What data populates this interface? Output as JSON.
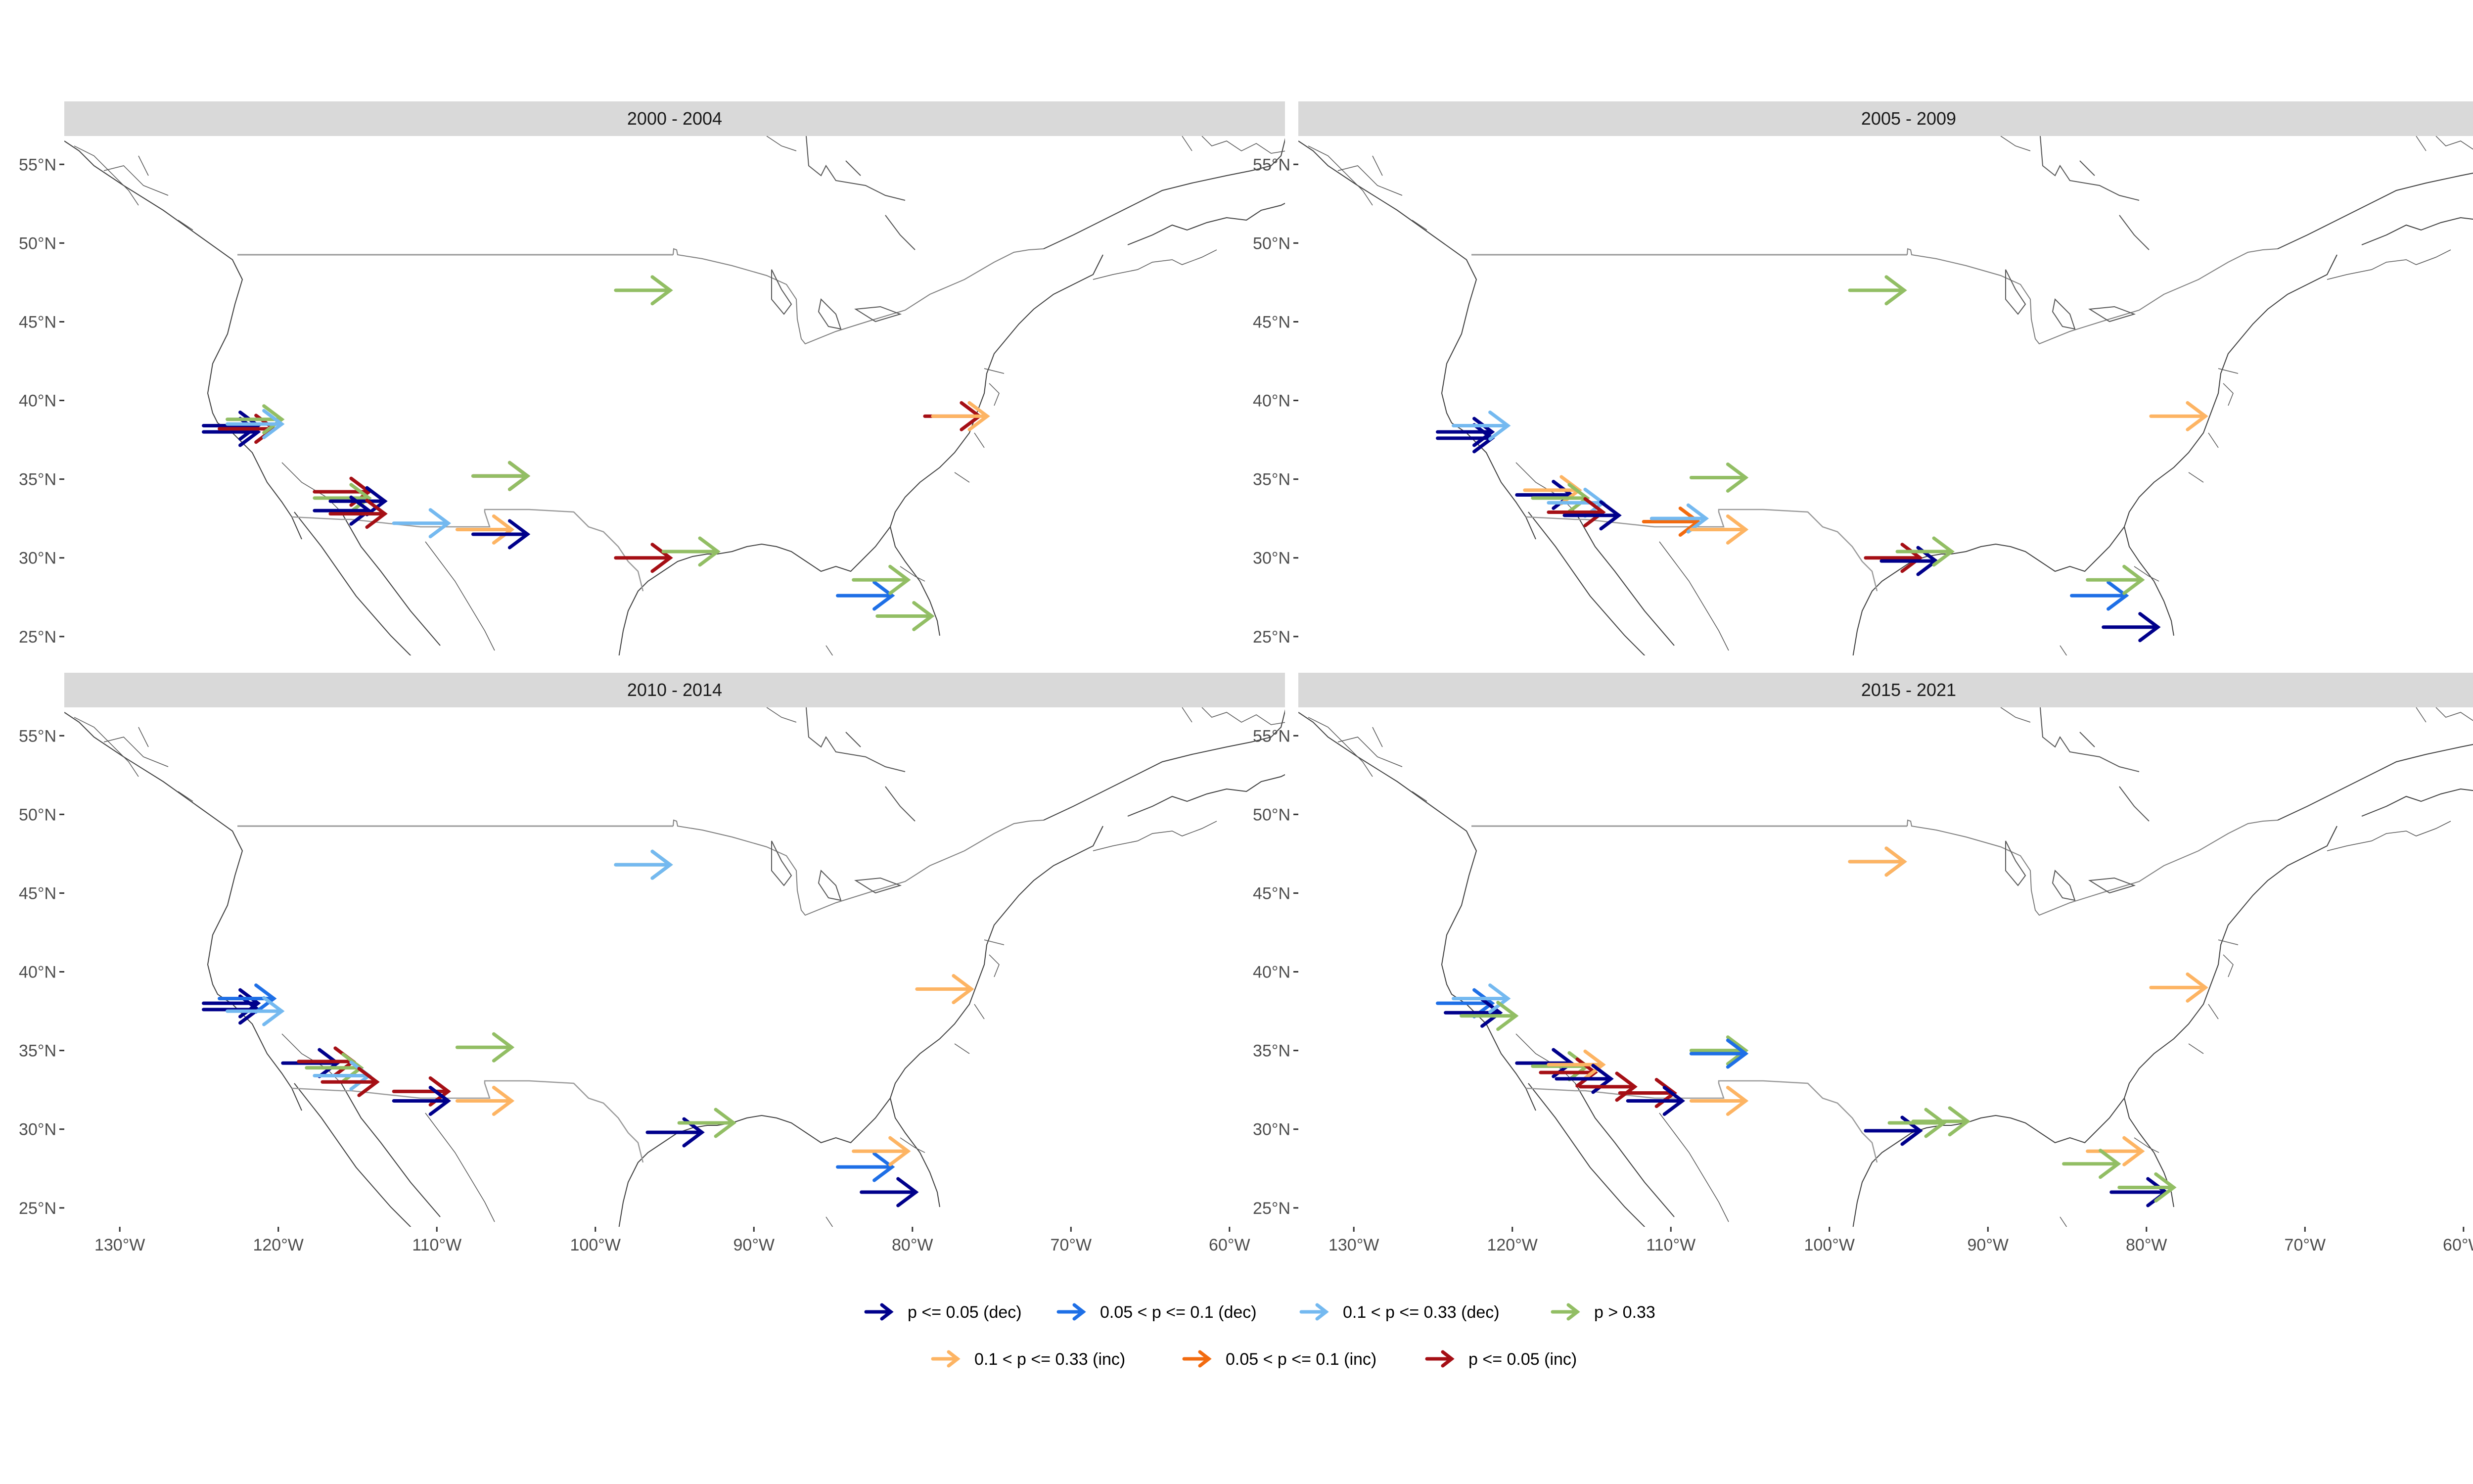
{
  "chart_data": {
    "type": "map",
    "panels": [
      {
        "title": "2000 - 2004",
        "arrows": [
          {
            "lon": -97,
            "lat": 47,
            "cat": "ns"
          },
          {
            "lon": -123,
            "lat": 38,
            "cat": "dec05"
          },
          {
            "lon": -123,
            "lat": 38.4,
            "cat": "dec05"
          },
          {
            "lon": -122,
            "lat": 38.2,
            "cat": "inc05"
          },
          {
            "lon": -121.5,
            "lat": 38.8,
            "cat": "ns"
          },
          {
            "lon": -121.5,
            "lat": 38.5,
            "cat": "dec33"
          },
          {
            "lon": -116,
            "lat": 34.2,
            "cat": "inc05"
          },
          {
            "lon": -116,
            "lat": 33.8,
            "cat": "ns"
          },
          {
            "lon": -115,
            "lat": 33.6,
            "cat": "dec05"
          },
          {
            "lon": -116,
            "lat": 33,
            "cat": "dec05"
          },
          {
            "lon": -115,
            "lat": 32.8,
            "cat": "inc05"
          },
          {
            "lon": -111,
            "lat": 32.2,
            "cat": "dec33"
          },
          {
            "lon": -106,
            "lat": 35.2,
            "cat": "inc05"
          },
          {
            "lon": -106,
            "lat": 35.2,
            "cat": "ns"
          },
          {
            "lon": -107,
            "lat": 31.8,
            "cat": "inc33"
          },
          {
            "lon": -106,
            "lat": 31.5,
            "cat": "dec05"
          },
          {
            "lon": -97,
            "lat": 30,
            "cat": "inc05"
          },
          {
            "lon": -94,
            "lat": 30.4,
            "cat": "ns"
          },
          {
            "lon": -77.5,
            "lat": 39,
            "cat": "inc05"
          },
          {
            "lon": -77,
            "lat": 39,
            "cat": "inc33"
          },
          {
            "lon": -83,
            "lat": 27.6,
            "cat": "dec01"
          },
          {
            "lon": -82,
            "lat": 28.6,
            "cat": "ns"
          },
          {
            "lon": -80.5,
            "lat": 26.3,
            "cat": "ns"
          }
        ]
      },
      {
        "title": "2005 - 2009",
        "arrows": [
          {
            "lon": -97,
            "lat": 47,
            "cat": "ns"
          },
          {
            "lon": -123,
            "lat": 38,
            "cat": "dec05"
          },
          {
            "lon": -123,
            "lat": 37.6,
            "cat": "dec05"
          },
          {
            "lon": -122,
            "lat": 38.4,
            "cat": "dec33"
          },
          {
            "lon": -118,
            "lat": 34,
            "cat": "dec05"
          },
          {
            "lon": -117.5,
            "lat": 34.3,
            "cat": "inc33"
          },
          {
            "lon": -117,
            "lat": 33.8,
            "cat": "ns"
          },
          {
            "lon": -116,
            "lat": 33.5,
            "cat": "dec33"
          },
          {
            "lon": -116,
            "lat": 32.9,
            "cat": "inc05"
          },
          {
            "lon": -115,
            "lat": 32.7,
            "cat": "dec05"
          },
          {
            "lon": -110,
            "lat": 32.3,
            "cat": "inc01"
          },
          {
            "lon": -109.5,
            "lat": 32.5,
            "cat": "dec33"
          },
          {
            "lon": -107,
            "lat": 35.1,
            "cat": "ns"
          },
          {
            "lon": -107,
            "lat": 31.8,
            "cat": "inc33"
          },
          {
            "lon": -96,
            "lat": 30,
            "cat": "inc05"
          },
          {
            "lon": -95,
            "lat": 29.8,
            "cat": "dec05"
          },
          {
            "lon": -94,
            "lat": 30.4,
            "cat": "ns"
          },
          {
            "lon": -78,
            "lat": 39,
            "cat": "inc33"
          },
          {
            "lon": -83,
            "lat": 27.6,
            "cat": "dec01"
          },
          {
            "lon": -82,
            "lat": 28.6,
            "cat": "ns"
          },
          {
            "lon": -81,
            "lat": 25.6,
            "cat": "dec05"
          }
        ]
      },
      {
        "title": "2010 - 2014",
        "arrows": [
          {
            "lon": -97,
            "lat": 46.8,
            "cat": "ns"
          },
          {
            "lon": -97,
            "lat": 46.8,
            "cat": "dec33"
          },
          {
            "lon": -123,
            "lat": 38,
            "cat": "dec05"
          },
          {
            "lon": -123,
            "lat": 37.6,
            "cat": "dec05"
          },
          {
            "lon": -122,
            "lat": 38.3,
            "cat": "dec01"
          },
          {
            "lon": -121.5,
            "lat": 37.5,
            "cat": "dec33"
          },
          {
            "lon": -118,
            "lat": 34.2,
            "cat": "dec05"
          },
          {
            "lon": -117,
            "lat": 34.3,
            "cat": "inc05"
          },
          {
            "lon": -116.5,
            "lat": 33.9,
            "cat": "ns"
          },
          {
            "lon": -116,
            "lat": 33.4,
            "cat": "dec33"
          },
          {
            "lon": -115.5,
            "lat": 33,
            "cat": "inc05"
          },
          {
            "lon": -111,
            "lat": 32.4,
            "cat": "inc05"
          },
          {
            "lon": -111,
            "lat": 31.8,
            "cat": "dec05"
          },
          {
            "lon": -107,
            "lat": 35.2,
            "cat": "ns"
          },
          {
            "lon": -107,
            "lat": 31.8,
            "cat": "inc33"
          },
          {
            "lon": -95,
            "lat": 29.8,
            "cat": "dec05"
          },
          {
            "lon": -93,
            "lat": 30.4,
            "cat": "ns"
          },
          {
            "lon": -78,
            "lat": 38.9,
            "cat": "inc33"
          },
          {
            "lon": -83,
            "lat": 27.6,
            "cat": "dec01"
          },
          {
            "lon": -82,
            "lat": 28.6,
            "cat": "inc33"
          },
          {
            "lon": -81.5,
            "lat": 26,
            "cat": "dec05"
          }
        ]
      },
      {
        "title": "2015 - 2021",
        "arrows": [
          {
            "lon": -97,
            "lat": 47,
            "cat": "dec33"
          },
          {
            "lon": -97,
            "lat": 47,
            "cat": "inc33"
          },
          {
            "lon": -123,
            "lat": 38,
            "cat": "dec01"
          },
          {
            "lon": -122.5,
            "lat": 37.4,
            "cat": "dec05"
          },
          {
            "lon": -122,
            "lat": 38.3,
            "cat": "dec33"
          },
          {
            "lon": -121.5,
            "lat": 37.2,
            "cat": "ns"
          },
          {
            "lon": -118,
            "lat": 34.2,
            "cat": "dec05"
          },
          {
            "lon": -117,
            "lat": 34,
            "cat": "ns"
          },
          {
            "lon": -116.5,
            "lat": 33.6,
            "cat": "inc05"
          },
          {
            "lon": -116,
            "lat": 34.1,
            "cat": "inc33"
          },
          {
            "lon": -115.5,
            "lat": 33.2,
            "cat": "dec05"
          },
          {
            "lon": -114,
            "lat": 32.7,
            "cat": "inc05"
          },
          {
            "lon": -111.5,
            "lat": 32.3,
            "cat": "inc05"
          },
          {
            "lon": -111,
            "lat": 31.8,
            "cat": "dec05"
          },
          {
            "lon": -107,
            "lat": 35,
            "cat": "ns"
          },
          {
            "lon": -107,
            "lat": 34.8,
            "cat": "dec01"
          },
          {
            "lon": -107,
            "lat": 31.8,
            "cat": "inc33"
          },
          {
            "lon": -96,
            "lat": 29.9,
            "cat": "dec05"
          },
          {
            "lon": -94.5,
            "lat": 30.4,
            "cat": "ns"
          },
          {
            "lon": -93,
            "lat": 30.5,
            "cat": "ns"
          },
          {
            "lon": -78,
            "lat": 39,
            "cat": "inc33"
          },
          {
            "lon": -82,
            "lat": 28.6,
            "cat": "inc33"
          },
          {
            "lon": -83.5,
            "lat": 27.8,
            "cat": "ns"
          },
          {
            "lon": -80.5,
            "lat": 26,
            "cat": "dec05"
          },
          {
            "lon": -80,
            "lat": 26.3,
            "cat": "ns"
          }
        ]
      }
    ],
    "x_ticks": [
      "130°W",
      "120°W",
      "110°W",
      "100°W",
      "90°W",
      "80°W",
      "70°W",
      "60°W"
    ],
    "x_tick_values": [
      -130,
      -120,
      -110,
      -100,
      -90,
      -80,
      -70,
      -60
    ],
    "y_ticks": [
      "25°N",
      "30°N",
      "35°N",
      "40°N",
      "45°N",
      "50°N",
      "55°N"
    ],
    "y_tick_values": [
      25,
      30,
      35,
      40,
      45,
      50,
      55
    ],
    "xlim": [
      -133.5,
      -56.5
    ],
    "ylim": [
      23.8,
      56.8
    ],
    "legend_position": "bottom",
    "legend": [
      {
        "key": "dec05",
        "label": "p <= 0.05 (dec)",
        "color": "#00008B"
      },
      {
        "key": "dec01",
        "label": "0.05 < p <= 0.1 (dec)",
        "color": "#1E6FE6"
      },
      {
        "key": "dec33",
        "label": "0.1  < p <= 0.33 (dec)",
        "color": "#74B9F0"
      },
      {
        "key": "ns",
        "label": "p > 0.33",
        "color": "#92BE64"
      },
      {
        "key": "inc33",
        "label": "0.1  < p <= 0.33 (inc)",
        "color": "#FDB463"
      },
      {
        "key": "inc01",
        "label": "0.05 < p <= 0.1 (inc)",
        "color": "#F26B10"
      },
      {
        "key": "inc05",
        "label": "p <= 0.05 (inc)",
        "color": "#A50F15"
      }
    ]
  },
  "colors": {
    "strip_background": "#D9D9D9",
    "boundary_line": "#7f7f7f"
  }
}
